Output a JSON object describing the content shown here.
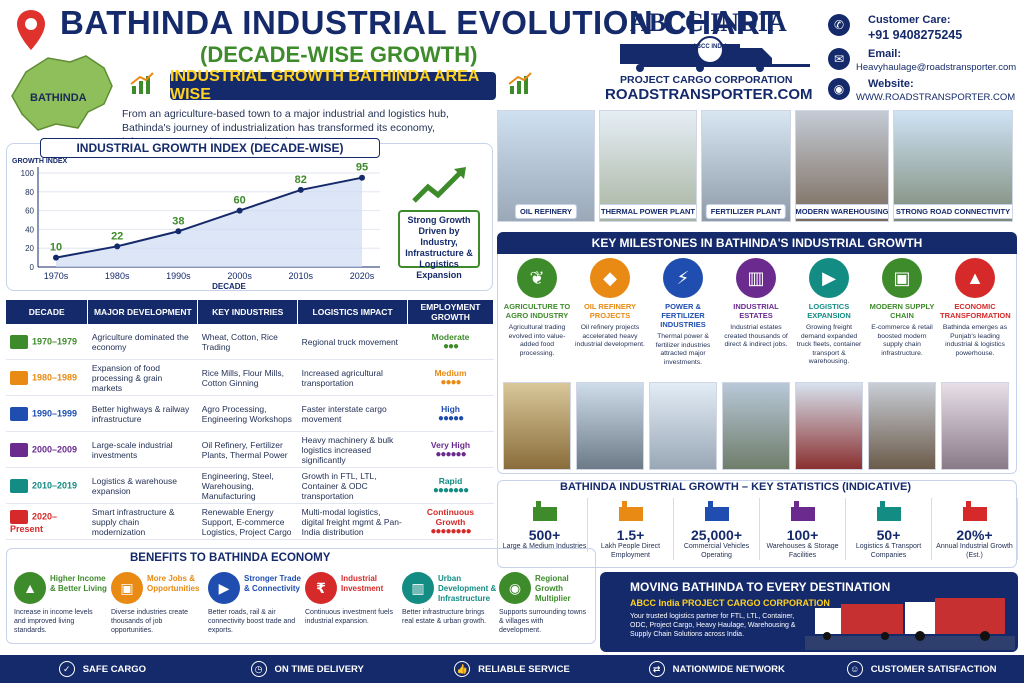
{
  "header": {
    "title": "BATHINDA INDUSTRIAL EVOLUTION CHART",
    "subtitle": "(DECADE-WISE GROWTH)",
    "map_label": "BATHINDA",
    "banner": "INDUSTRIAL GROWTH BATHINDA AREA WISE",
    "intro": "From an agriculture-based town to a major industrial and logistics hub, Bathinda's journey of industrialization has transformed its economy, infrastructure, employment and trade."
  },
  "brand": {
    "name": "ABCC INDIA",
    "badge": "ABCC INDIA",
    "tagline": "PROJECT CARGO CORPORATION",
    "url": "ROADSTRANSPORTER.COM"
  },
  "contact": {
    "care_label": "Customer Care:",
    "care_value": "+91 9408275245",
    "email_label": "Email:",
    "email_value": "Heavyhaulage@roadstransporter.com",
    "web_label": "Website:",
    "web_value": "WWW.ROADSTRANSPORTER.COM"
  },
  "chart_data": {
    "type": "line",
    "title": "INDUSTRIAL GROWTH INDEX (DECADE-WISE)",
    "ylabel": "GROWTH INDEX",
    "xlabel": "DECADE",
    "categories": [
      "1970s",
      "1980s",
      "1990s",
      "2000s",
      "2010s",
      "2020s"
    ],
    "values": [
      10,
      22,
      38,
      60,
      82,
      95
    ],
    "yticks": [
      0,
      20,
      40,
      60,
      80,
      100
    ],
    "ylim": [
      0,
      100
    ],
    "grid": true
  },
  "growth_note": "Strong Growth Driven by Industry, Infrastructure & Logistics Expansion",
  "table": {
    "headers": [
      "DECADE",
      "MAJOR DEVELOPMENT",
      "KEY INDUSTRIES",
      "LOGISTICS IMPACT",
      "EMPLOYMENT GROWTH"
    ],
    "rows": [
      {
        "decade": "1970–1979",
        "dev": "Agriculture dominated the economy",
        "ind": "Wheat, Cotton, Rice Trading",
        "log": "Regional truck movement",
        "emp": "Moderate",
        "color": "#3e8b2b",
        "icon": "tractor-icon",
        "people": 3
      },
      {
        "decade": "1980–1989",
        "dev": "Expansion of food processing & grain markets",
        "ind": "Rice Mills, Flour Mills, Cotton Ginning",
        "log": "Increased agricultural transportation",
        "emp": "Medium",
        "color": "#e88a13",
        "icon": "wheat-icon",
        "people": 4
      },
      {
        "decade": "1990–1999",
        "dev": "Better highways & railway infrastructure",
        "ind": "Agro Processing, Engineering Workshops",
        "log": "Faster interstate cargo movement",
        "emp": "High",
        "color": "#1f4eb0",
        "icon": "road-icon",
        "people": 5
      },
      {
        "decade": "2000–2009",
        "dev": "Large-scale industrial investments",
        "ind": "Oil Refinery, Fertilizer Plants, Thermal Power",
        "log": "Heavy machinery & bulk logistics increased significantly",
        "emp": "Very High",
        "color": "#6a2a8e",
        "icon": "factory-icon",
        "people": 6
      },
      {
        "decade": "2010–2019",
        "dev": "Logistics & warehouse expansion",
        "ind": "Engineering, Steel, Warehousing, Manufacturing",
        "log": "Growth in FTL, LTL, Container & ODC transportation",
        "emp": "Rapid",
        "color": "#138c84",
        "icon": "warehouse-icon",
        "people": 7
      },
      {
        "decade": "2020–Present",
        "dev": "Smart infrastructure & supply chain modernization",
        "ind": "Renewable Energy Support, E-commerce Logistics, Project Cargo",
        "log": "Multi-modal logistics, digital freight mgmt & Pan-India distribution",
        "emp": "Continuous Growth",
        "color": "#d62a2a",
        "icon": "trend-up-icon",
        "people": 8
      }
    ]
  },
  "benefits": {
    "title": "BENEFITS TO BATHINDA ECONOMY",
    "items": [
      {
        "title": "Higher Income & Better Living",
        "desc": "Increase in income levels and improved living standards.",
        "color": "#3e8b2b",
        "icon": "chart-icon"
      },
      {
        "title": "More Jobs & Opportunities",
        "desc": "Diverse industries create thousands of job opportunities.",
        "color": "#e88a13",
        "icon": "briefcase-icon"
      },
      {
        "title": "Stronger Trade & Connectivity",
        "desc": "Better roads, rail & air connectivity boost trade and exports.",
        "color": "#1f4eb0",
        "icon": "truck-icon"
      },
      {
        "title": "Industrial Investment",
        "desc": "Continuous investment fuels industrial expansion.",
        "color": "#d62a2a",
        "icon": "rupee-icon"
      },
      {
        "title": "Urban Development & Infrastructure",
        "desc": "Better infrastructure brings real estate & urban growth.",
        "color": "#138c84",
        "icon": "building-icon"
      },
      {
        "title": "Regional Growth Multiplier",
        "desc": "Supports surrounding towns & villages with development.",
        "color": "#3e8b2b",
        "icon": "globe-icon"
      }
    ]
  },
  "photos": [
    "OIL REFINERY",
    "THERMAL POWER PLANT",
    "FERTILIZER PLANT",
    "MODERN WAREHOUSING",
    "STRONG ROAD CONNECTIVITY"
  ],
  "milestones": {
    "title": "KEY MILESTONES IN BATHINDA'S INDUSTRIAL GROWTH",
    "items": [
      {
        "title": "AGRICULTURE TO AGRO INDUSTRY",
        "desc": "Agricultural trading evolved into value-added food processing.",
        "color": "#3e8b2b",
        "icon": "leaf-icon"
      },
      {
        "title": "OIL REFINERY PROJECTS",
        "desc": "Oil refinery projects accelerated heavy industrial development.",
        "color": "#e88a13",
        "icon": "oil-drop-icon"
      },
      {
        "title": "POWER & FERTILIZER INDUSTRIES",
        "desc": "Thermal power & fertilizer industries attracted major investments.",
        "color": "#1f4eb0",
        "icon": "lightning-icon"
      },
      {
        "title": "INDUSTRIAL ESTATES",
        "desc": "Industrial estates created thousands of direct & indirect jobs.",
        "color": "#6a2a8e",
        "icon": "factory-icon"
      },
      {
        "title": "LOGISTICS EXPANSION",
        "desc": "Growing freight demand expanded truck fleets, container transport & warehousing.",
        "color": "#138c84",
        "icon": "truck-icon"
      },
      {
        "title": "MODERN SUPPLY CHAIN",
        "desc": "E-commerce & retail boosted modern supply chain infrastructure.",
        "color": "#3e8b2b",
        "icon": "box-icon"
      },
      {
        "title": "ECONOMIC TRANSFORMATION",
        "desc": "Bathinda emerges as Punjab's leading industrial & logistics powerhouse.",
        "color": "#d62a2a",
        "icon": "trend-up-icon"
      }
    ]
  },
  "stats": {
    "title": "BATHINDA INDUSTRIAL GROWTH – KEY STATISTICS (INDICATIVE)",
    "items": [
      {
        "value": "500+",
        "label": "Large & Medium Industries",
        "color": "#3e8b2b",
        "icon": "factory-icon"
      },
      {
        "value": "1.5+",
        "label": "Lakh People Direct Employment",
        "color": "#e88a13",
        "icon": "people-icon"
      },
      {
        "value": "25,000+",
        "label": "Commercial Vehicles Operating",
        "color": "#1f4eb0",
        "icon": "truck-icon"
      },
      {
        "value": "100+",
        "label": "Warehouses & Storage Facilities",
        "color": "#6a2a8e",
        "icon": "warehouse-icon"
      },
      {
        "value": "50+",
        "label": "Logistics & Transport Companies",
        "color": "#138c84",
        "icon": "building-icon"
      },
      {
        "value": "20%+",
        "label": "Annual Industrial Growth (Est.)",
        "color": "#d62a2a",
        "icon": "trend-up-icon"
      }
    ]
  },
  "promo": {
    "heading": "MOVING BATHINDA TO EVERY DESTINATION",
    "sub": "ABCC India PROJECT CARGO CORPORATION",
    "desc": "Your trusted logistics partner for FTL, LTL, Container, ODC, Project Cargo, Heavy Haulage, Warehousing & Supply Chain Solutions across India."
  },
  "footer": [
    "SAFE CARGO",
    "ON TIME DELIVERY",
    "RELIABLE SERVICE",
    "NATIONWIDE NETWORK",
    "CUSTOMER SATISFACTION"
  ]
}
